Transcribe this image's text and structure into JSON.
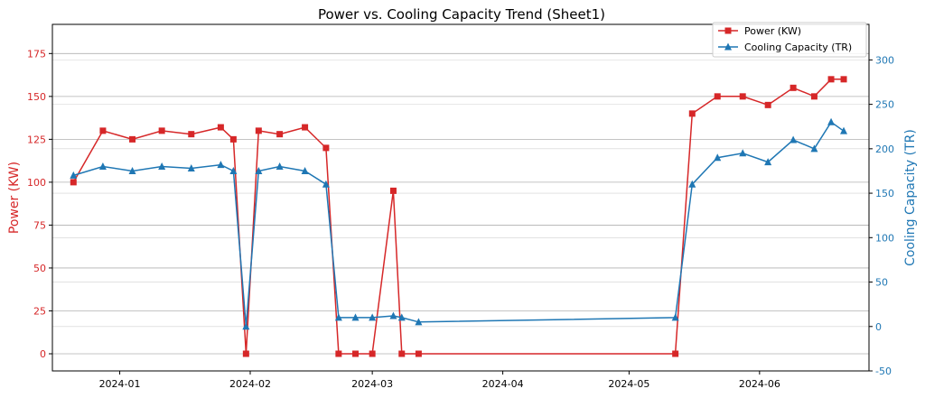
{
  "chart_data": {
    "type": "line",
    "title": "Power vs. Cooling Capacity Trend (Sheet1)",
    "x_ticks": [
      "2024-01",
      "2024-02",
      "2024-03",
      "2024-04",
      "2024-05",
      "2024-06"
    ],
    "left_axis": {
      "label": "Power (KW)",
      "color": "#d62728",
      "ylim": [
        -10,
        192
      ],
      "ticks": [
        0,
        25,
        50,
        75,
        100,
        125,
        150,
        175
      ]
    },
    "right_axis": {
      "label": "Cooling Capacity (TR)",
      "color": "#1f77b4",
      "ylim": [
        -50,
        340
      ],
      "ticks": [
        -50,
        0,
        50,
        100,
        150,
        200,
        250,
        300
      ]
    },
    "grid": "horizontal",
    "legend_position": "top-right",
    "series": [
      {
        "name": "Power (KW)",
        "axis": "left",
        "color": "#d62728",
        "marker": "square",
        "x": [
          "2023-12-21",
          "2023-12-28",
          "2024-01-04",
          "2024-01-11",
          "2024-01-18",
          "2024-01-25",
          "2024-01-28",
          "2024-01-31",
          "2024-02-03",
          "2024-02-08",
          "2024-02-14",
          "2024-02-19",
          "2024-02-22",
          "2024-02-26",
          "2024-03-01",
          "2024-03-06",
          "2024-03-08",
          "2024-03-12",
          "2024-05-12",
          "2024-05-16",
          "2024-05-22",
          "2024-05-28",
          "2024-06-03",
          "2024-06-09",
          "2024-06-14",
          "2024-06-18",
          "2024-06-21"
        ],
        "values": [
          100,
          130,
          125,
          130,
          128,
          132,
          125,
          0,
          130,
          128,
          132,
          120,
          0,
          0,
          0,
          95,
          0,
          0,
          0,
          140,
          150,
          150,
          145,
          155,
          150,
          160,
          160
        ]
      },
      {
        "name": "Cooling Capacity (TR)",
        "axis": "right",
        "color": "#1f77b4",
        "marker": "triangle",
        "x": [
          "2023-12-21",
          "2023-12-28",
          "2024-01-04",
          "2024-01-11",
          "2024-01-18",
          "2024-01-25",
          "2024-01-28",
          "2024-01-31",
          "2024-02-03",
          "2024-02-08",
          "2024-02-14",
          "2024-02-19",
          "2024-02-22",
          "2024-02-26",
          "2024-03-01",
          "2024-03-06",
          "2024-03-08",
          "2024-03-12",
          "2024-05-12",
          "2024-05-16",
          "2024-05-22",
          "2024-05-28",
          "2024-06-03",
          "2024-06-09",
          "2024-06-14",
          "2024-06-18",
          "2024-06-21"
        ],
        "values": [
          170,
          180,
          175,
          180,
          178,
          182,
          175,
          0,
          175,
          180,
          175,
          160,
          10,
          10,
          10,
          12,
          10,
          5,
          10,
          160,
          190,
          195,
          185,
          210,
          200,
          230,
          220
        ]
      }
    ]
  }
}
